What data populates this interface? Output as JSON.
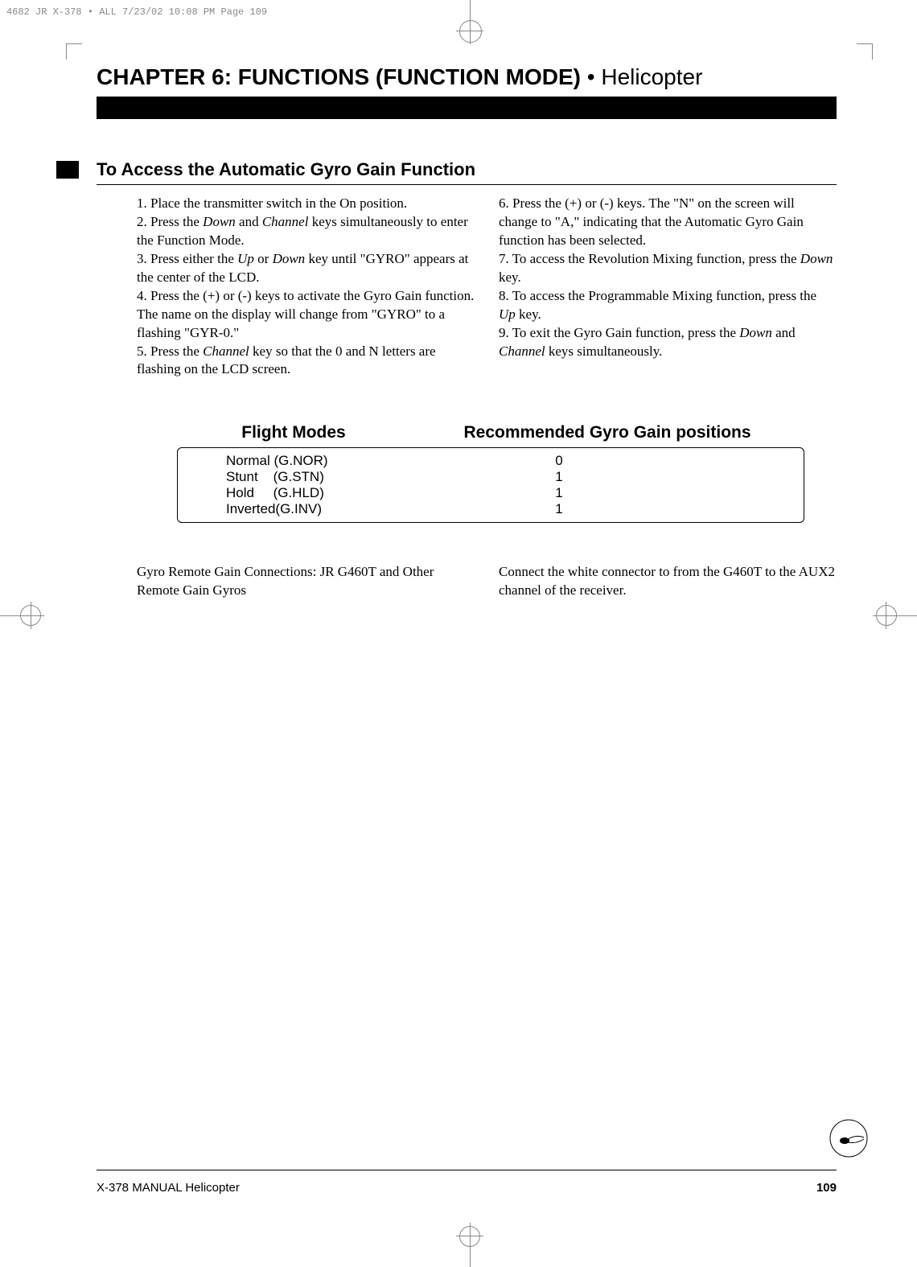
{
  "meta_header": "4682 JR X-378 • ALL  7/23/02  10:08 PM  Page 109",
  "chapter": {
    "bold_part": "CHAPTER 6: FUNCTIONS (FUNCTION MODE)",
    "separator": " • ",
    "light_part": "Helicopter"
  },
  "section_title": "To Access the Automatic Gyro Gain Function",
  "left_col_lines": [
    "1. Place the transmitter switch in the On position.",
    "2. Press the <i>Down</i> and <i>Channel</i> keys simultaneously to enter the Function Mode.",
    "3. Press either the <i>Up</i> or <i>Down</i> key until \"GYRO\" appears at the center of the LCD.",
    "4. Press the (+) or (-) keys to activate the Gyro Gain function. The name on the display will change from \"GYRO\" to a flashing \"GYR-0.\"",
    "5. Press the <i>Channel</i> key so that the 0 and N letters are flashing on the LCD screen."
  ],
  "right_col_lines": [
    "6. Press the (+) or (-) keys. The \"N\" on the screen will change to \"A,\" indicating that the Automatic Gyro Gain function has been selected.",
    "7. To access the Revolution Mixing function, press the <i>Down</i> key.",
    "8. To access the Programmable Mixing function, press the <i>Up</i> key.",
    "9. To exit the Gyro Gain function, press the <i>Down</i> and <i>Channel</i> keys simultaneously."
  ],
  "table": {
    "head1": "Flight Modes",
    "head2": "Recommended Gyro Gain positions",
    "rows": [
      {
        "mode": "Normal (G.NOR)",
        "val": "0"
      },
      {
        "mode": "Stunt    (G.STN)",
        "val": "1"
      },
      {
        "mode": "Hold     (G.HLD)",
        "val": "1"
      },
      {
        "mode": "Inverted(G.INV)",
        "val": "1"
      }
    ]
  },
  "bottom_left": "Gyro Remote Gain Connections: JR G460T and Other Remote Gain Gyros",
  "bottom_right": "Connect the white connector to from the G460T to the AUX2 channel of the receiver.",
  "footer_left": "X-378 MANUAL  Helicopter",
  "footer_page": "109"
}
